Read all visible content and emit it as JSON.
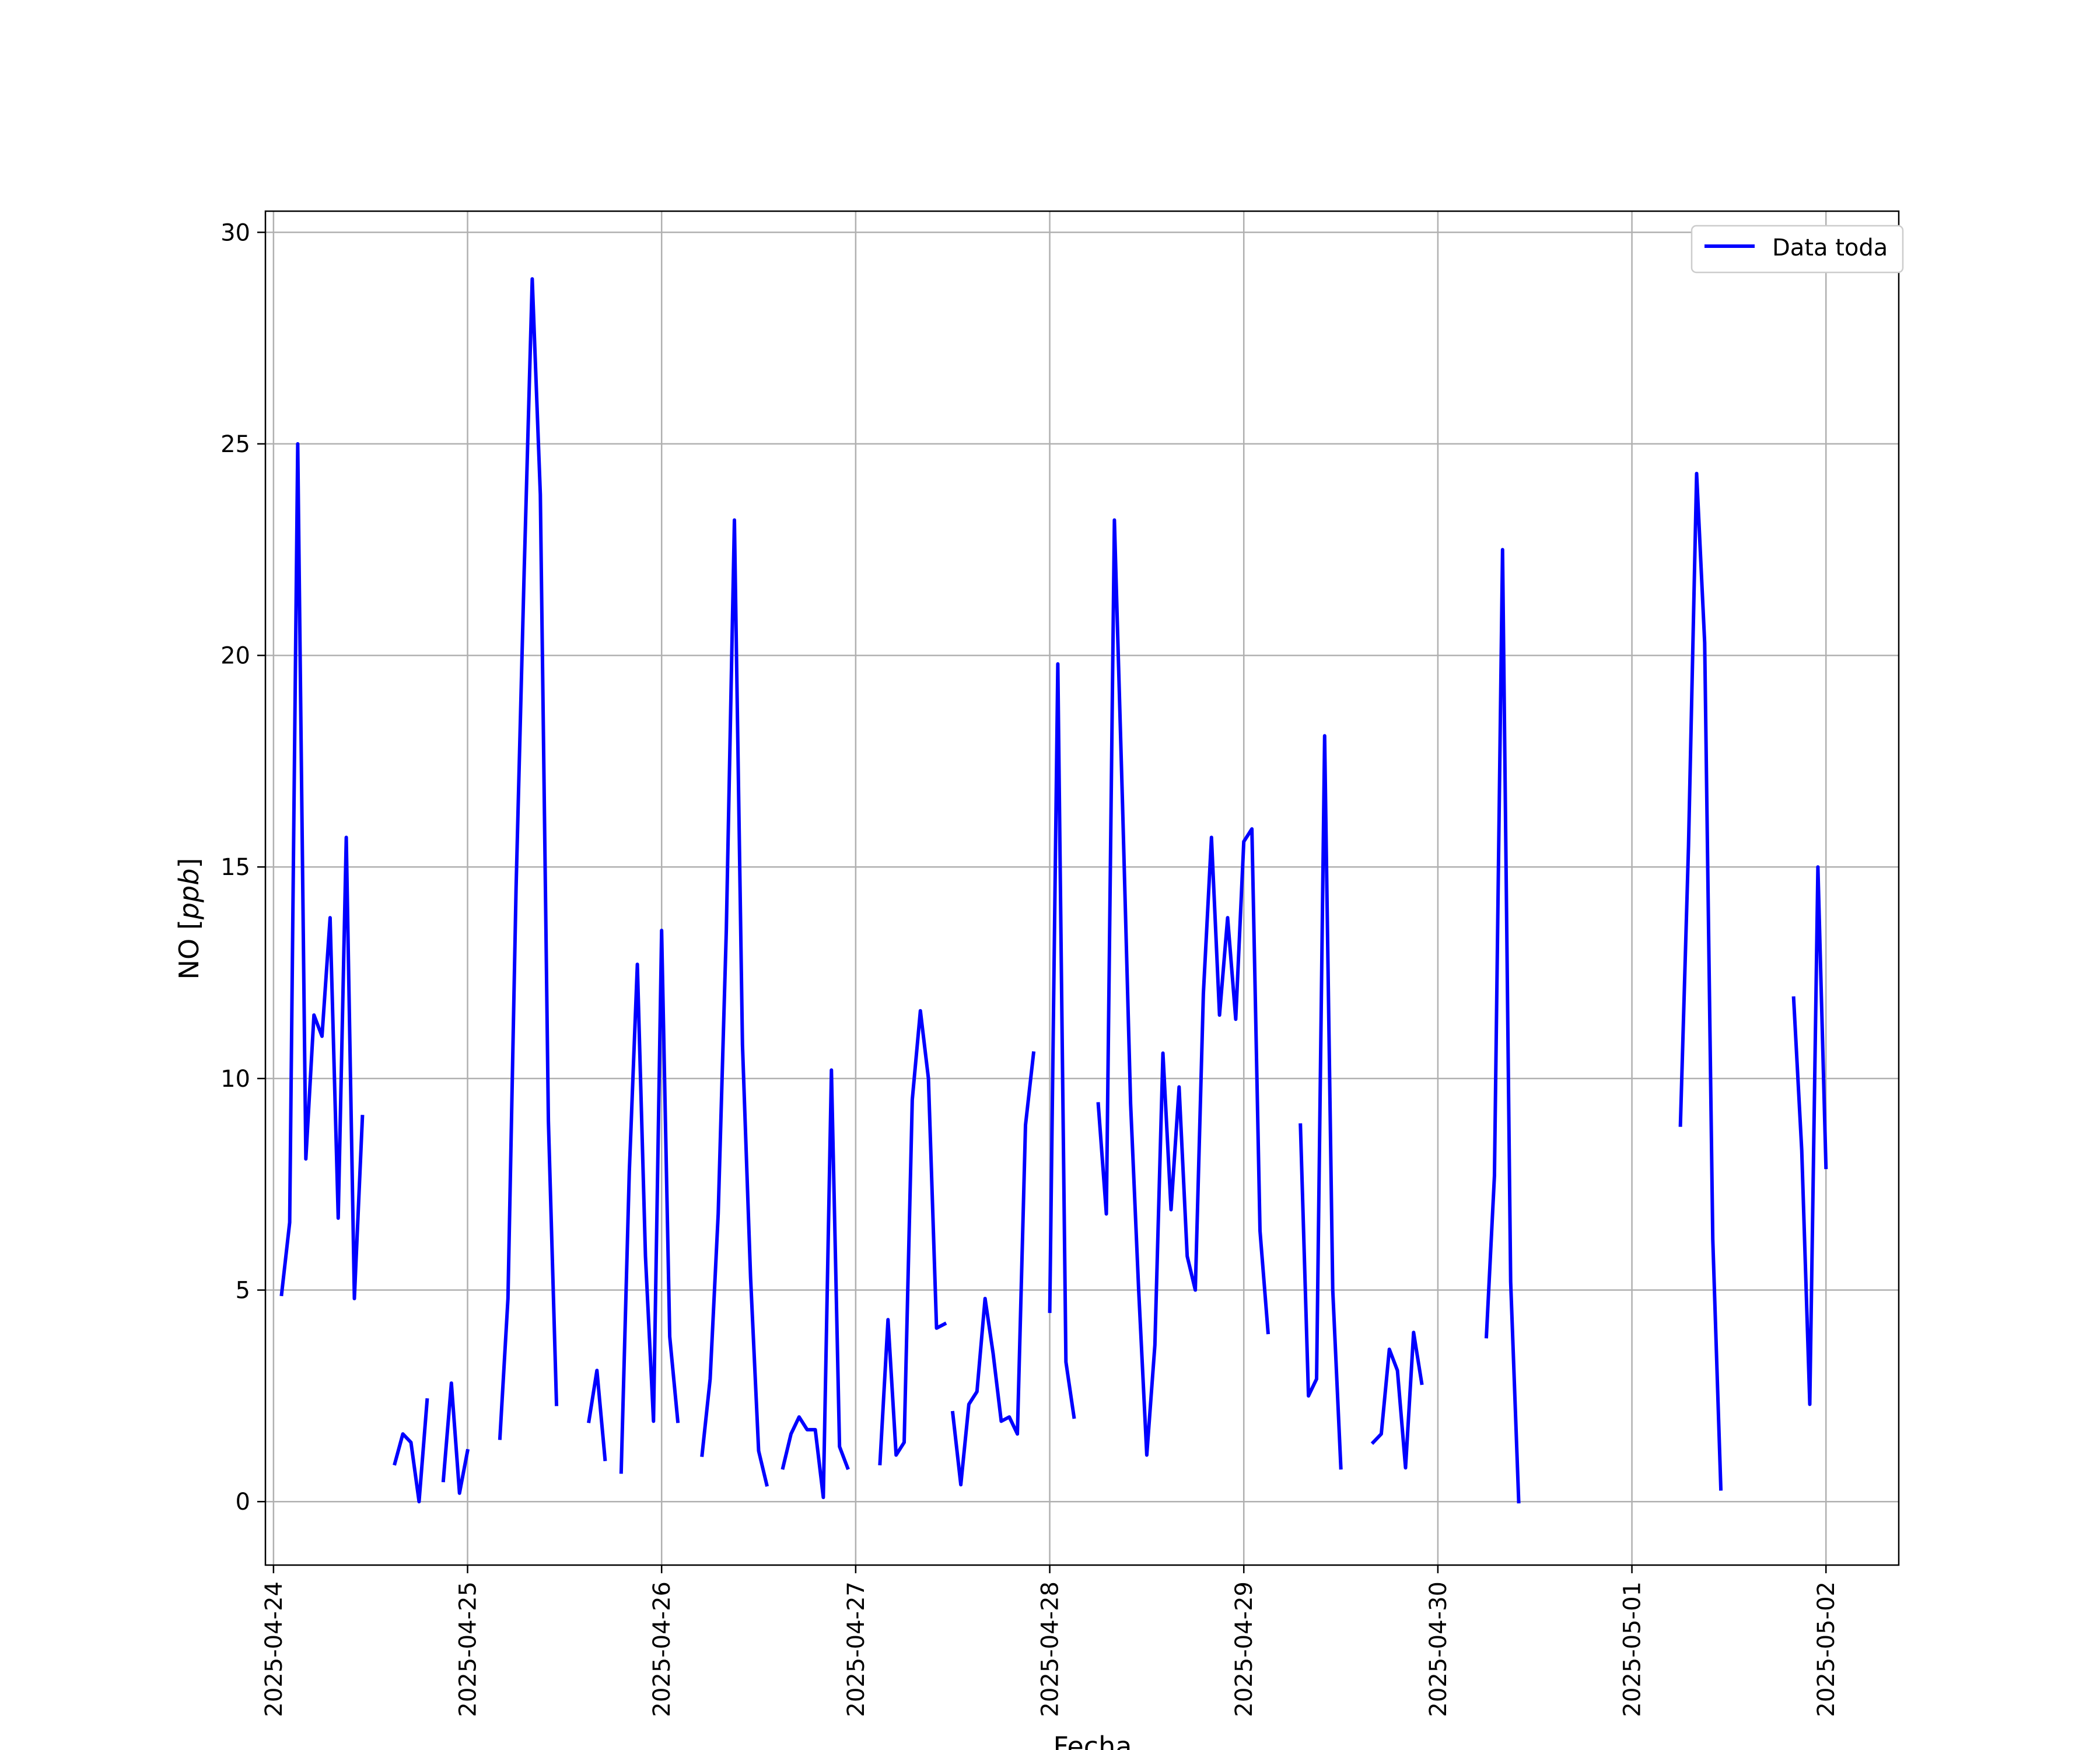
{
  "chart_data": {
    "type": "line",
    "title": "",
    "xlabel": "Fecha",
    "ylabel": "NO [ppb]",
    "ylabel_main": "NO [",
    "ylabel_unit": "ppb",
    "ylabel_end": "]",
    "xlim": [
      "2025-04-23T23:00",
      "2025-05-02T09:00"
    ],
    "ylim": [
      -1.5,
      30.5
    ],
    "x_ticks": [
      "2025-04-24",
      "2025-04-25",
      "2025-04-26",
      "2025-04-27",
      "2025-04-28",
      "2025-04-29",
      "2025-04-30",
      "2025-05-01",
      "2025-05-02"
    ],
    "y_ticks": [
      0,
      5,
      10,
      15,
      20,
      25,
      30
    ],
    "grid": true,
    "legend_position": "top-right",
    "series": [
      {
        "name": "Data toda",
        "color": "#0000ff",
        "segments": [
          {
            "x": [
              "2025-04-24T01:00",
              "2025-04-24T02:00",
              "2025-04-24T03:00",
              "2025-04-24T04:00",
              "2025-04-24T05:00",
              "2025-04-24T06:00",
              "2025-04-24T07:00",
              "2025-04-24T08:00",
              "2025-04-24T09:00",
              "2025-04-24T10:00",
              "2025-04-24T11:00"
            ],
            "y": [
              4.9,
              6.6,
              25.0,
              8.1,
              11.5,
              11.0,
              13.8,
              6.7,
              15.7,
              4.8,
              9.1
            ]
          },
          {
            "x": [
              "2025-04-24T15:00",
              "2025-04-24T16:00",
              "2025-04-24T17:00",
              "2025-04-24T18:00",
              "2025-04-24T18:30",
              "2025-04-24T19:00"
            ],
            "y": [
              0.9,
              1.6,
              1.4,
              0.0,
              1.2,
              2.4
            ]
          },
          {
            "x": [
              "2025-04-24T21:00",
              "2025-04-24T22:00",
              "2025-04-24T23:00",
              "2025-04-25T00:00"
            ],
            "y": [
              0.5,
              2.8,
              0.2,
              1.2
            ]
          },
          {
            "x": [
              "2025-04-25T04:00",
              "2025-04-25T05:00",
              "2025-04-25T06:00",
              "2025-04-25T07:00",
              "2025-04-25T08:00",
              "2025-04-25T09:00",
              "2025-04-25T10:00",
              "2025-04-25T11:00"
            ],
            "y": [
              1.5,
              4.8,
              14.5,
              22.0,
              28.9,
              23.8,
              9.0,
              2.3
            ]
          },
          {
            "x": [
              "2025-04-25T15:00",
              "2025-04-25T16:00",
              "2025-04-25T17:00"
            ],
            "y": [
              1.9,
              3.1,
              1.0
            ]
          },
          {
            "x": [
              "2025-04-25T19:00",
              "2025-04-25T20:00",
              "2025-04-25T21:00",
              "2025-04-25T22:00",
              "2025-04-25T23:00",
              "2025-04-26T00:00",
              "2025-04-26T01:00",
              "2025-04-26T02:00"
            ],
            "y": [
              0.7,
              7.8,
              12.7,
              5.8,
              1.9,
              13.5,
              3.9,
              1.9
            ]
          },
          {
            "x": [
              "2025-04-26T05:00",
              "2025-04-26T06:00",
              "2025-04-26T07:00",
              "2025-04-26T08:00",
              "2025-04-26T09:00",
              "2025-04-26T10:00",
              "2025-04-26T11:00",
              "2025-04-26T12:00",
              "2025-04-26T13:00"
            ],
            "y": [
              1.1,
              2.9,
              6.8,
              13.5,
              23.2,
              10.8,
              5.3,
              1.2,
              0.4
            ]
          },
          {
            "x": [
              "2025-04-26T15:00",
              "2025-04-26T16:00",
              "2025-04-26T17:00",
              "2025-04-26T18:00",
              "2025-04-26T19:00",
              "2025-04-26T20:00",
              "2025-04-26T21:00",
              "2025-04-26T22:00",
              "2025-04-26T23:00"
            ],
            "y": [
              0.8,
              1.6,
              2.0,
              1.7,
              1.7,
              0.1,
              10.2,
              1.3,
              0.8
            ]
          },
          {
            "x": [
              "2025-04-27T03:00",
              "2025-04-27T04:00",
              "2025-04-27T05:00",
              "2025-04-27T06:00",
              "2025-04-27T07:00",
              "2025-04-27T08:00",
              "2025-04-27T09:00",
              "2025-04-27T10:00",
              "2025-04-27T11:00"
            ],
            "y": [
              0.9,
              4.3,
              1.1,
              1.4,
              9.5,
              11.6,
              10.0,
              4.1,
              4.2
            ]
          },
          {
            "x": [
              "2025-04-27T12:00",
              "2025-04-27T13:00",
              "2025-04-27T14:00",
              "2025-04-27T15:00",
              "2025-04-27T16:00",
              "2025-04-27T17:00",
              "2025-04-27T18:00",
              "2025-04-27T19:00",
              "2025-04-27T20:00",
              "2025-04-27T21:00",
              "2025-04-27T22:00"
            ],
            "y": [
              2.1,
              0.4,
              2.3,
              2.6,
              4.8,
              3.5,
              1.9,
              2.0,
              1.6,
              8.9,
              10.6
            ]
          },
          {
            "x": [
              "2025-04-28T00:00",
              "2025-04-28T01:00",
              "2025-04-28T02:00",
              "2025-04-28T03:00"
            ],
            "y": [
              4.5,
              19.8,
              3.3,
              2.0
            ]
          },
          {
            "x": [
              "2025-04-28T06:00",
              "2025-04-28T07:00",
              "2025-04-28T08:00",
              "2025-04-28T09:00",
              "2025-04-28T10:00",
              "2025-04-28T11:00",
              "2025-04-28T12:00",
              "2025-04-28T13:00",
              "2025-04-28T14:00",
              "2025-04-28T15:00",
              "2025-04-28T16:00",
              "2025-04-28T17:00",
              "2025-04-28T18:00",
              "2025-04-28T19:00",
              "2025-04-28T20:00",
              "2025-04-28T21:00",
              "2025-04-28T22:00",
              "2025-04-28T23:00",
              "2025-04-29T00:00",
              "2025-04-29T01:00",
              "2025-04-29T02:00",
              "2025-04-29T03:00"
            ],
            "y": [
              9.4,
              6.8,
              23.2,
              16.5,
              9.4,
              5.0,
              1.1,
              3.7,
              10.6,
              6.9,
              9.8,
              5.8,
              5.0,
              12.0,
              15.7,
              11.5,
              13.8,
              11.4,
              15.6,
              15.9,
              6.4,
              4.0
            ]
          },
          {
            "x": [
              "2025-04-29T07:00",
              "2025-04-29T08:00",
              "2025-04-29T09:00",
              "2025-04-29T10:00",
              "2025-04-29T11:00",
              "2025-04-29T12:00"
            ],
            "y": [
              8.9,
              2.5,
              2.9,
              18.1,
              5.0,
              0.8
            ]
          },
          {
            "x": [
              "2025-04-29T16:00",
              "2025-04-29T17:00",
              "2025-04-29T18:00",
              "2025-04-29T19:00",
              "2025-04-29T20:00",
              "2025-04-29T21:00",
              "2025-04-29T22:00"
            ],
            "y": [
              1.4,
              1.6,
              3.6,
              3.1,
              0.8,
              4.0,
              2.8
            ]
          },
          {
            "x": [
              "2025-04-30T06:00",
              "2025-04-30T07:00",
              "2025-04-30T08:00",
              "2025-04-30T09:00",
              "2025-04-30T10:00"
            ],
            "y": [
              3.9,
              7.7,
              22.5,
              5.2,
              0.0
            ]
          },
          {
            "x": [
              "2025-05-01T06:00",
              "2025-05-01T07:00",
              "2025-05-01T08:00",
              "2025-05-01T09:00",
              "2025-05-01T10:00",
              "2025-05-01T11:00"
            ],
            "y": [
              8.9,
              15.5,
              24.3,
              20.3,
              6.2,
              0.3
            ]
          },
          {
            "x": [
              "2025-05-01T20:00",
              "2025-05-01T21:00",
              "2025-05-01T22:00",
              "2025-05-01T23:00",
              "2025-05-02T00:00"
            ],
            "y": [
              11.9,
              8.3,
              2.3,
              15.0,
              7.9
            ]
          }
        ]
      }
    ]
  }
}
